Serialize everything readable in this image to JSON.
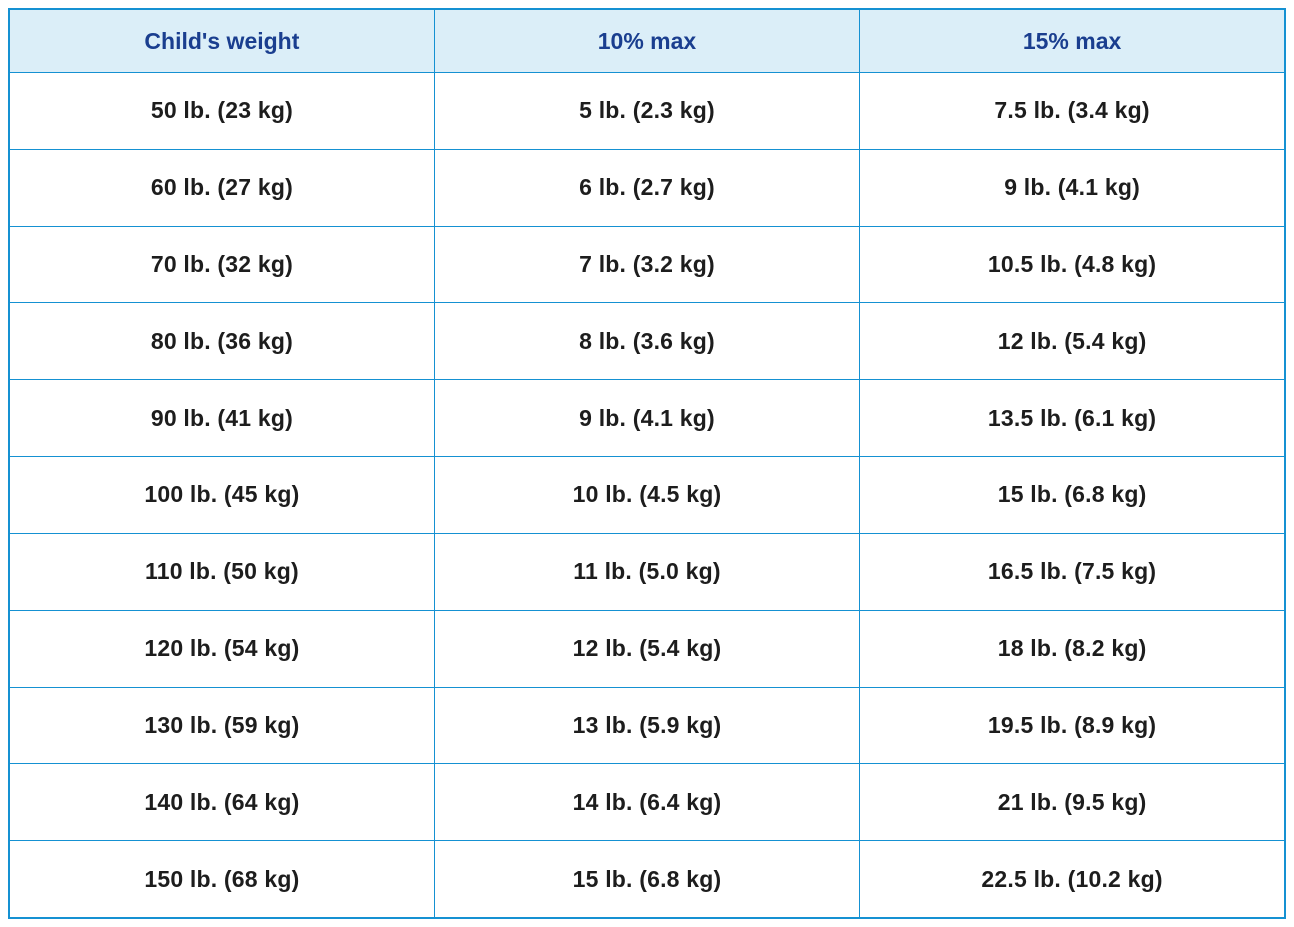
{
  "colors": {
    "border": "#1591d2",
    "header_bg": "#dbeef8",
    "header_text": "#1a3e8f",
    "body_text": "#1d1d1d",
    "body_bg": "#ffffff"
  },
  "chart_data": {
    "type": "table",
    "columns": [
      "Child's weight",
      "10% max",
      "15% max"
    ],
    "rows": [
      [
        "50 lb. (23 kg)",
        "5 lb. (2.3 kg)",
        "7.5 lb. (3.4 kg)"
      ],
      [
        "60 lb. (27 kg)",
        "6 lb. (2.7 kg)",
        "9 lb. (4.1 kg)"
      ],
      [
        "70 lb. (32 kg)",
        "7 lb. (3.2 kg)",
        "10.5 lb. (4.8 kg)"
      ],
      [
        "80 lb. (36 kg)",
        "8 lb. (3.6 kg)",
        "12 lb. (5.4 kg)"
      ],
      [
        "90 lb. (41 kg)",
        "9 lb. (4.1 kg)",
        "13.5 lb. (6.1 kg)"
      ],
      [
        "100 lb. (45 kg)",
        "10 lb. (4.5 kg)",
        "15 lb. (6.8 kg)"
      ],
      [
        "110 lb. (50 kg)",
        "11 lb. (5.0 kg)",
        "16.5 lb. (7.5 kg)"
      ],
      [
        "120 lb. (54 kg)",
        "12 lb. (5.4 kg)",
        "18 lb. (8.2 kg)"
      ],
      [
        "130 lb. (59 kg)",
        "13 lb. (5.9 kg)",
        "19.5 lb. (8.9 kg)"
      ],
      [
        "140 lb. (64 kg)",
        "14 lb. (6.4 kg)",
        "21 lb. (9.5 kg)"
      ],
      [
        "150 lb. (68 kg)",
        "15 lb. (6.8 kg)",
        "22.5 lb. (10.2 kg)"
      ]
    ]
  }
}
